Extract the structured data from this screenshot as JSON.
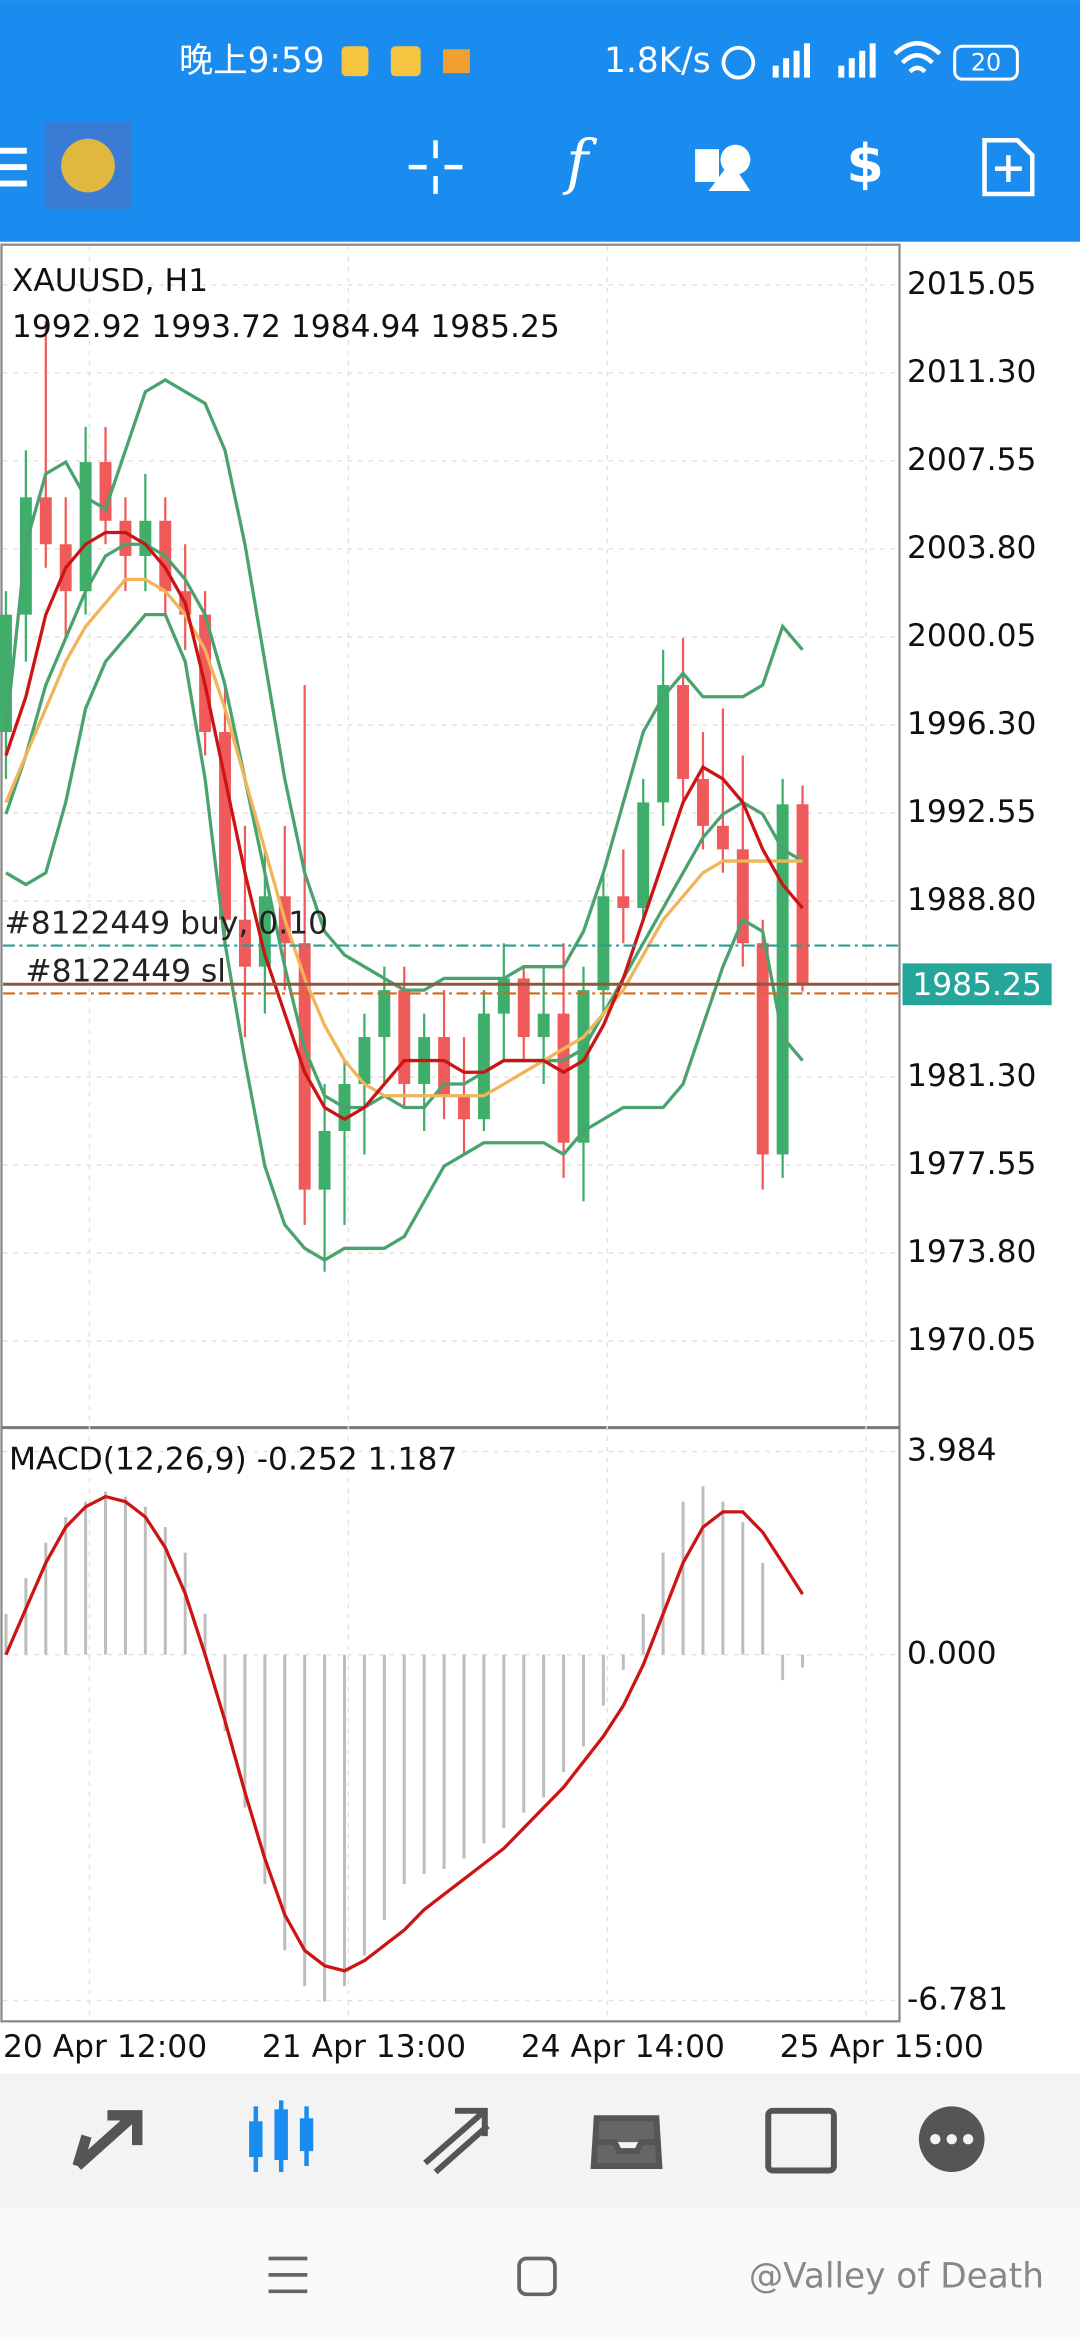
{
  "status_bar": {
    "time": "晚上9:59",
    "speed": "1.8K/s",
    "battery": "20"
  },
  "chart_data": [
    {
      "type": "candlestick",
      "title": "XAUUSD, H1",
      "open": [
        1996,
        2001,
        2006,
        2004,
        2002,
        2007.5,
        2005,
        2003.5,
        2005,
        2002,
        2001,
        1996,
        1988,
        1986,
        1989,
        1987,
        1976.5,
        1979,
        1981,
        1983,
        1985,
        1981,
        1983,
        1980.5,
        1979.5,
        1984,
        1985.5,
        1983,
        1984,
        1978.5,
        1985,
        1989,
        1988.5,
        1993,
        1998,
        1994,
        1992,
        1991,
        1987,
        1978,
        1992.92
      ],
      "high": [
        2002,
        2008,
        2013.5,
        2006,
        2009,
        2009,
        2006,
        2007,
        2006,
        2004,
        2002,
        1998,
        1992,
        1991,
        1992,
        1998,
        1981,
        1982,
        1984,
        1986,
        1986,
        1984,
        1985,
        1983,
        1985,
        1987,
        1986,
        1986,
        1987,
        1986,
        1990,
        1991,
        1994,
        1999.5,
        2000,
        1996,
        1997,
        1995,
        1988,
        1994,
        1993.72
      ],
      "low": [
        1994,
        1999,
        2003,
        2000,
        2001,
        2004,
        2002,
        2002,
        2001,
        1999.5,
        1995,
        1987,
        1983,
        1984,
        1985,
        1975,
        1973,
        1975,
        1978,
        1981,
        1980,
        1979,
        1979.5,
        1978,
        1979,
        1982,
        1982,
        1981,
        1977,
        1976,
        1984,
        1987,
        1988,
        1992,
        1993,
        1991,
        1990,
        1986,
        1976.5,
        1977,
        1984.94
      ],
      "close": [
        2001,
        2006,
        2004,
        2002,
        2007.5,
        2005,
        2003.5,
        2005,
        2002,
        2001,
        1996,
        1988,
        1986,
        1989,
        1987,
        1976.5,
        1979,
        1981,
        1983,
        1985,
        1981,
        1983,
        1980.5,
        1979.5,
        1984,
        1985.5,
        1983,
        1984,
        1978.5,
        1985,
        1989,
        1988.5,
        1993,
        1998,
        1994,
        1992,
        1991,
        1987,
        1978,
        1992.92,
        1985.25
      ],
      "up_color": "#3fae6a",
      "down_color": "#ef5b5b",
      "price_line_color": "#8b5a3c",
      "price_box_color": "#26a69a",
      "series": [
        {
          "color": "#4aa36f",
          "values": [
            1996,
            2004,
            2007,
            2007.5,
            2006,
            2005.5,
            2008,
            2010.5,
            2011,
            2010.5,
            2010,
            2008,
            2004,
            1999,
            1994,
            1990,
            1987.5,
            1986.5,
            1986,
            1985.5,
            1985,
            1985,
            1985.5,
            1985.5,
            1985.5,
            1985.5,
            1986,
            1986,
            1986,
            1987.5,
            1990,
            1993,
            1996,
            1997.5,
            1998.5,
            1997.5,
            1997.5,
            1997.5,
            1998,
            2000.5,
            1999.5
          ]
        },
        {
          "color": "#4aa36f",
          "values": [
            1992.5,
            1995,
            1998,
            2000,
            2002,
            2003.5,
            2004,
            2004,
            2003.5,
            2002.5,
            2001,
            1998,
            1994,
            1990,
            1986,
            1982.5,
            1980.5,
            1980,
            1980,
            1980.5,
            1980,
            1980,
            1981,
            1981,
            1981.5,
            1982,
            1982,
            1982,
            1982,
            1982.5,
            1984,
            1985.5,
            1987,
            1988.5,
            1990,
            1991.5,
            1992.5,
            1993,
            1992.5,
            1991,
            1990.5
          ]
        },
        {
          "color": "#4aa36f",
          "values": [
            1990,
            1989.5,
            1990,
            1993,
            1997,
            1999,
            2000,
            2001,
            2001,
            1999,
            1994,
            1987,
            1982,
            1977.5,
            1975,
            1974,
            1973.5,
            1974,
            1974,
            1974,
            1974.5,
            1976,
            1977.5,
            1978,
            1978.5,
            1978.5,
            1978.5,
            1978.5,
            1978,
            1979,
            1979.5,
            1980,
            1980,
            1980,
            1981,
            1983.5,
            1986,
            1988,
            1987.5,
            1983,
            1982
          ]
        },
        {
          "color": "#f2b45a",
          "values": [
            1993,
            1995,
            1997,
            1999,
            2000.5,
            2001.5,
            2002.5,
            2002.5,
            2002,
            2001,
            1999.5,
            1997,
            1994,
            1991,
            1988,
            1985.5,
            1983.5,
            1982,
            1981,
            1980.5,
            1980.5,
            1980.5,
            1980.5,
            1980.5,
            1980.5,
            1981,
            1981.5,
            1982,
            1982.5,
            1983,
            1984,
            1985,
            1986.5,
            1988,
            1989,
            1990,
            1990.5,
            1990.5,
            1990.5,
            1990.5,
            1990.5
          ]
        },
        {
          "color": "#cc1414",
          "values": [
            1995,
            1997.5,
            2001,
            2003,
            2004,
            2004.5,
            2004.5,
            2004,
            2003,
            2001.5,
            1998,
            1994,
            1990,
            1986.5,
            1984,
            1981.5,
            1980,
            1979.5,
            1980,
            1981,
            1982,
            1982,
            1982,
            1981.5,
            1981.5,
            1982,
            1982,
            1982,
            1981.5,
            1982,
            1983.5,
            1985.5,
            1988,
            1990.5,
            1993,
            1994.5,
            1994,
            1993,
            1991,
            1989.5,
            1988.5
          ]
        }
      ],
      "orders": [
        {
          "label": "#8122449 buy, 0.10",
          "price": 1986.9,
          "color": "#2a9d8f"
        },
        {
          "label": "#8122449 sl",
          "price": 1984.86,
          "color": "#d2691e"
        }
      ],
      "ylim": [
        1966.36,
        2016.7
      ],
      "yticks": [
        2015.05,
        {
          "value": 2011.3,
          "label": "2011.30"
        },
        2007.55,
        {
          "value": 2003.8,
          "label": "2003.80"
        },
        2000.05,
        {
          "value": 1996.3,
          "label": "1996.30"
        },
        1992.55,
        {
          "value": 1988.8,
          "label": "1988.80"
        },
        {
          "value": 1981.3,
          "label": "1981.30"
        },
        1977.55,
        {
          "value": 1973.8,
          "label": "1973.80"
        },
        1970.05
      ],
      "xticks": [
        {
          "value": 0,
          "label": "20 Apr 12:00"
        },
        {
          "value": 13,
          "label": "21 Apr 13:00"
        },
        {
          "value": 26,
          "label": "24 Apr 14:00"
        },
        {
          "value": 39,
          "label": "25 Apr 15:00"
        }
      ],
      "grid": true
    },
    {
      "type": "macd",
      "title": "MACD(12,26,9)",
      "histogram": [
        0.8,
        1.5,
        2.2,
        2.7,
        3.0,
        3.2,
        3.1,
        2.9,
        2.5,
        2.0,
        0.8,
        -1.5,
        -3.0,
        -4.5,
        -5.8,
        -6.5,
        -6.8,
        -6.5,
        -5.9,
        -5.2,
        -4.5,
        -4.3,
        -4.2,
        -4.0,
        -3.7,
        -3.4,
        -3.1,
        -2.8,
        -2.3,
        -1.8,
        -1.0,
        -0.3,
        0.8,
        2.0,
        3.0,
        3.3,
        3.0,
        2.6,
        1.8,
        -0.5,
        -0.252
      ],
      "histogram_color": "#bdbdbd",
      "signal": {
        "color": "#cc1414",
        "values": [
          0,
          0.9,
          1.8,
          2.5,
          2.9,
          3.1,
          3.0,
          2.7,
          2.1,
          1.2,
          0.0,
          -1.3,
          -2.7,
          -4.0,
          -5.1,
          -5.8,
          -6.1,
          -6.2,
          -6.0,
          -5.7,
          -5.4,
          -5.0,
          -4.7,
          -4.4,
          -4.1,
          -3.8,
          -3.4,
          -3.0,
          -2.6,
          -2.1,
          -1.6,
          -1.0,
          -0.2,
          0.8,
          1.8,
          2.5,
          2.8,
          2.8,
          2.4,
          1.8,
          1.187
        ]
      },
      "ylim": [
        -7.19,
        4.423
      ],
      "yticks": [
        3.984,
        {
          "value": 0,
          "label": "0.000"
        },
        -6.781
      ],
      "grid": true
    }
  ],
  "watermark": "@Valley of Death"
}
